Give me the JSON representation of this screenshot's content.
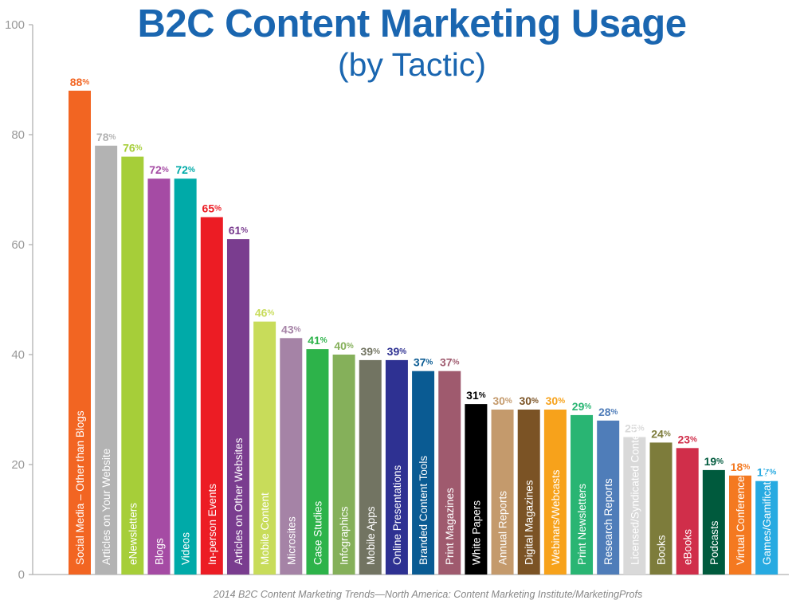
{
  "chart_data": {
    "type": "bar",
    "title": "B2C Content Marketing Usage",
    "subtitle": "(by Tactic)",
    "source": "2014 B2C Content Marketing Trends—North America: Content Marketing Institute/MarketingProfs",
    "xlabel": "",
    "ylabel": "",
    "ylim": [
      0,
      100
    ],
    "yticks": [
      0,
      20,
      40,
      60,
      80,
      100
    ],
    "grid": false,
    "value_suffix": "%",
    "categories": [
      "Social Media – Other than Blogs",
      "Articles on Your Website",
      "eNewsletters",
      "Blogs",
      "Videos",
      "In-person Events",
      "Articles on Other Websites",
      "Mobile Content",
      "Microsites",
      "Case Studies",
      "Infographics",
      "Mobile Apps",
      "Online Presentations",
      "Branded Content Tools",
      "Print Magazines",
      "White Papers",
      "Annual Reports",
      "Digital Magazines",
      "Webinars/Webcasts",
      "Print Newsletters",
      "Research Reports",
      "Licensed/Syndicated Content",
      "Books",
      "eBooks",
      "Podcasts",
      "Virtual Conferences",
      "Games/Gamification"
    ],
    "values": [
      88,
      78,
      76,
      72,
      72,
      65,
      61,
      46,
      43,
      41,
      40,
      39,
      39,
      37,
      37,
      31,
      30,
      30,
      30,
      29,
      28,
      25,
      24,
      23,
      19,
      18,
      17
    ],
    "colors": [
      "#f26522",
      "#b3b3b3",
      "#a6ce39",
      "#a54ba4",
      "#00aaa8",
      "#ec1c24",
      "#7a3d8f",
      "#c8dc5a",
      "#a583a6",
      "#2db34a",
      "#85b05a",
      "#727462",
      "#2e3192",
      "#0a5b93",
      "#9f5a6e",
      "#000000",
      "#c49a6c",
      "#7b5325",
      "#f7a21b",
      "#29b573",
      "#4f7db9",
      "#d9d9d9",
      "#7d7c3b",
      "#d02e4a",
      "#005a3d",
      "#f47920",
      "#27aae1"
    ],
    "label_colors": [
      "#000000",
      "#000000",
      "#ffffff",
      "#ffffff",
      "#ffffff",
      "#ffffff",
      "#ffffff",
      "#000000",
      "#000000",
      "#000000",
      "#ffffff",
      "#ffffff",
      "#ffffff",
      "#ffffff",
      "#ffffff",
      "#ffffff",
      "#000000",
      "#ffffff",
      "#000000",
      "#000000",
      "#ffffff",
      "#000000",
      "#000000",
      "#ffffff",
      "#ffffff",
      "#000000",
      "#000000"
    ]
  }
}
